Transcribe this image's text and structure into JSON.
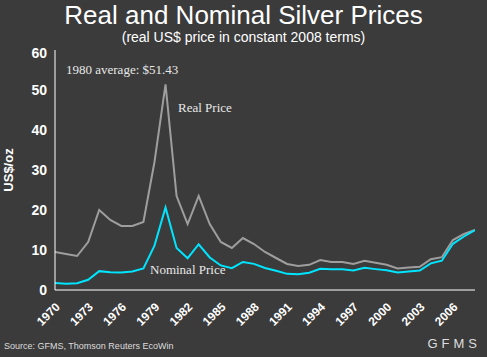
{
  "chart_data": {
    "type": "line",
    "title": "Real and Nominal Silver Prices",
    "subtitle": "(real US$ price in constant 2008 terms)",
    "y_label": "US$/oz",
    "annotations": [
      "1980 average: $51.43"
    ],
    "source": "Source: GFMS, Thomson Reuters EcoWin",
    "logo": "GFMS",
    "x": [
      1970,
      1971,
      1972,
      1973,
      1974,
      1975,
      1976,
      1977,
      1978,
      1979,
      1980,
      1981,
      1982,
      1983,
      1984,
      1985,
      1986,
      1987,
      1988,
      1989,
      1990,
      1991,
      1992,
      1993,
      1994,
      1995,
      1996,
      1997,
      1998,
      1999,
      2000,
      2001,
      2002,
      2003,
      2004,
      2005,
      2006,
      2007,
      2008
    ],
    "series": [
      {
        "name": "Real Price",
        "color": "#9e9e9e",
        "values": [
          9.5,
          9,
          8.5,
          12,
          20,
          17.5,
          16,
          16,
          17,
          32,
          51.43,
          23.5,
          16.5,
          23.5,
          16.5,
          12,
          10.5,
          13,
          11.5,
          9.5,
          8,
          6.5,
          6,
          6.3,
          7.5,
          7,
          7,
          6.5,
          7.3,
          6.8,
          6.3,
          5.4,
          5.6,
          5.8,
          7.7,
          8.2,
          12.5,
          14,
          15
        ]
      },
      {
        "name": "Nominal Price",
        "color": "#00e5ff",
        "values": [
          1.77,
          1.55,
          1.68,
          2.56,
          4.71,
          4.42,
          4.35,
          4.62,
          5.4,
          11.09,
          20.63,
          10.52,
          7.95,
          11.44,
          8.14,
          6.14,
          5.47,
          7.01,
          6.53,
          5.5,
          4.82,
          4.04,
          3.94,
          4.3,
          5.29,
          5.2,
          5.2,
          4.9,
          5.54,
          5.22,
          4.95,
          4.37,
          4.6,
          4.88,
          6.67,
          7.32,
          11.55,
          13.38,
          14.99
        ]
      }
    ],
    "xlim": [
      1970,
      2008
    ],
    "xticks": [
      1970,
      1973,
      1976,
      1979,
      1982,
      1985,
      1988,
      1991,
      1994,
      1997,
      2000,
      2003,
      2006
    ],
    "ylim": [
      0,
      60
    ],
    "yticks": [
      0,
      10,
      20,
      30,
      40,
      50,
      60
    ],
    "grid": false
  }
}
